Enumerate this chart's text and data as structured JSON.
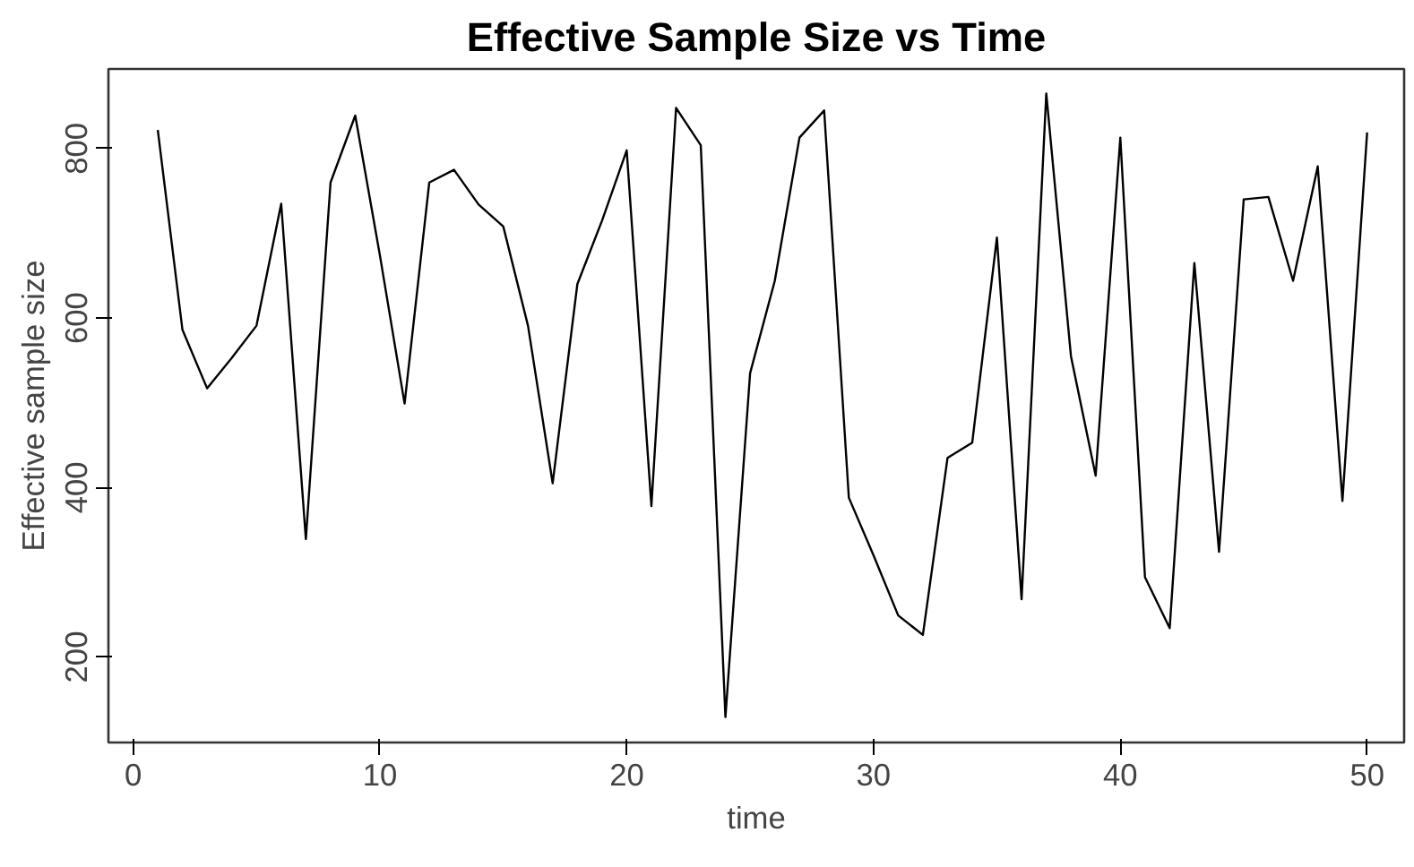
{
  "chart_data": {
    "type": "line",
    "title": "Effective Sample Size vs Time",
    "xlabel": "time",
    "ylabel": "Effective sample size",
    "x": [
      1,
      2,
      3,
      4,
      5,
      6,
      7,
      8,
      9,
      10,
      11,
      12,
      13,
      14,
      15,
      16,
      17,
      18,
      19,
      20,
      21,
      22,
      23,
      24,
      25,
      26,
      27,
      28,
      29,
      30,
      31,
      32,
      33,
      34,
      35,
      36,
      37,
      38,
      39,
      40,
      41,
      42,
      43,
      44,
      45,
      46,
      47,
      48,
      49,
      50
    ],
    "series": [
      {
        "color": "#000000",
        "values": [
          822,
          586,
          517,
          553,
          591,
          735,
          339,
          760,
          839,
          674,
          499,
          760,
          775,
          734,
          708,
          591,
          405,
          640,
          715,
          798,
          378,
          848,
          804,
          129,
          535,
          644,
          813,
          845,
          388,
          320,
          249,
          226,
          435,
          453,
          695,
          268,
          865,
          555,
          414,
          813,
          294,
          234,
          665,
          324,
          740,
          743,
          644,
          779,
          384,
          819
        ]
      }
    ],
    "xlim": [
      -1,
      51.5
    ],
    "ylim": [
      99,
      894
    ],
    "xticks": [
      0,
      10,
      20,
      30,
      40,
      50
    ],
    "yticks": [
      200,
      400,
      600,
      800
    ],
    "grid": false,
    "marker": "none",
    "line_style": "solid"
  }
}
